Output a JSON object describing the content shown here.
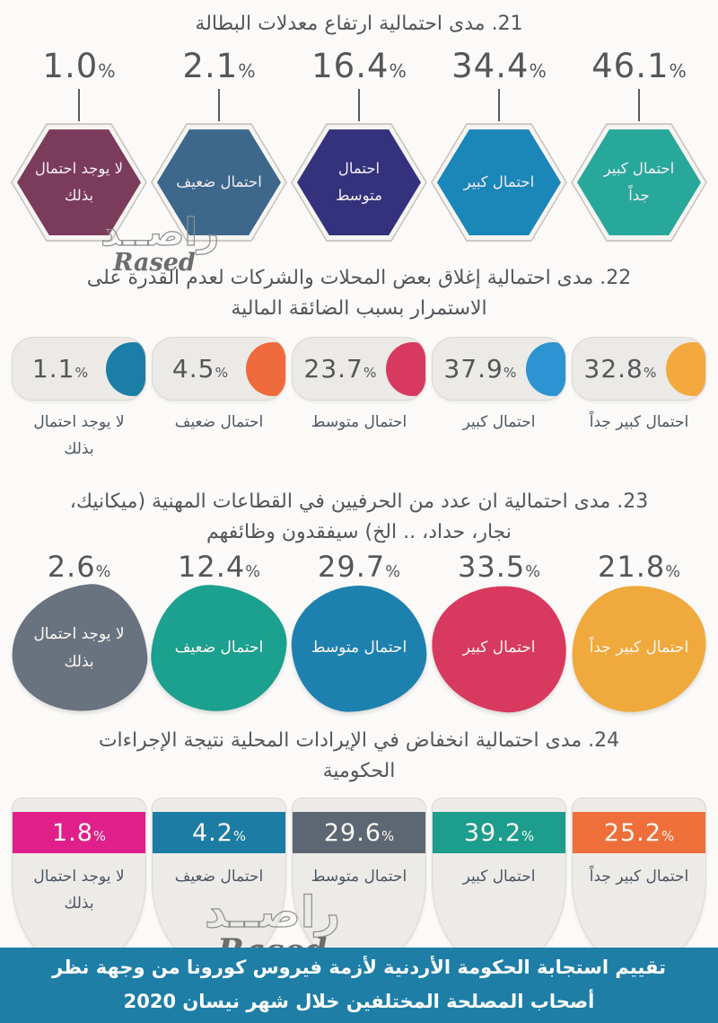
{
  "percent_sign": "%",
  "watermark": {
    "arabic": "راصــد",
    "latin": "Rased"
  },
  "footer": {
    "text": "تقييم استجابة الحكومة الأردنية لأزمة فيروس كورونا من وجهة نظر أصحاب المصلحة المختلفين خلال شهر نيسان 2020",
    "bg": "#1e7ea6"
  },
  "sections": [
    {
      "number": "21",
      "title": "21. مدى احتمالية ارتفاع معدلات البطالة",
      "shape": "hexagon",
      "items": [
        {
          "value": "1.0",
          "label": "لا يوجد احتمال بذلك",
          "color": "#7b3c5c"
        },
        {
          "value": "2.1",
          "label": "احتمال ضعيف",
          "color": "#3d688b"
        },
        {
          "value": "16.4",
          "label": "احتمال متوسط",
          "color": "#34327c"
        },
        {
          "value": "34.4",
          "label": "احتمال كبير",
          "color": "#1b86b8"
        },
        {
          "value": "46.1",
          "label": "احتمال كبير جداً",
          "color": "#28a89a"
        }
      ]
    },
    {
      "number": "22",
      "title": "22. مدى احتمالية إغلاق بعض المحلات والشركات لعدم القدرة على الاستمرار بسبب الضائقة المالية",
      "shape": "pill-circle",
      "items": [
        {
          "value": "1.1",
          "label": "لا يوجد احتمال بذلك",
          "color": "#1b7ea6"
        },
        {
          "value": "4.5",
          "label": "احتمال ضعيف",
          "color": "#ef6a3c"
        },
        {
          "value": "23.7",
          "label": "احتمال متوسط",
          "color": "#d8395e"
        },
        {
          "value": "37.9",
          "label": "احتمال كبير",
          "color": "#2b94d1"
        },
        {
          "value": "32.8",
          "label": "احتمال كبير جداً",
          "color": "#f4a93e"
        }
      ]
    },
    {
      "number": "23",
      "title": "23. مدى احتمالية ان عدد من الحرفيين في القطاعات المهنية (ميكانيك، نجار، حداد، .. الخ) سيفقدون وظائفهم",
      "shape": "blob",
      "items": [
        {
          "value": "2.6",
          "label": "لا يوجد احتمال بذلك",
          "color": "#69727f"
        },
        {
          "value": "12.4",
          "label": "احتمال ضعيف",
          "color": "#1ca08f"
        },
        {
          "value": "29.7",
          "label": "احتمال متوسط",
          "color": "#1d81b0"
        },
        {
          "value": "33.5",
          "label": "احتمال كبير",
          "color": "#d8395e"
        },
        {
          "value": "21.8",
          "label": "احتمال كبير جداً",
          "color": "#f0a93c"
        }
      ]
    },
    {
      "number": "24",
      "title": "24. مدى احتمالية انخفاض في الإيرادات المحلية نتيجة الإجراءات الحكومية",
      "shape": "shield-card",
      "items": [
        {
          "value": "1.8",
          "label": "لا يوجد احتمال بذلك",
          "color": "#e01f8a"
        },
        {
          "value": "4.2",
          "label": "احتمال ضعيف",
          "color": "#1c7ca4"
        },
        {
          "value": "29.6",
          "label": "احتمال متوسط",
          "color": "#5d6773"
        },
        {
          "value": "39.2",
          "label": "احتمال كبير",
          "color": "#1d9d8d"
        },
        {
          "value": "25.2",
          "label": "احتمال كبير جداً",
          "color": "#ef6f3a"
        }
      ]
    }
  ],
  "chart_data": [
    {
      "type": "bar",
      "title": "21. مدى احتمالية ارتفاع معدلات البطالة",
      "categories": [
        "لا يوجد احتمال بذلك",
        "احتمال ضعيف",
        "احتمال متوسط",
        "احتمال كبير",
        "احتمال كبير جداً"
      ],
      "values": [
        1.0,
        2.1,
        16.4,
        34.4,
        46.1
      ],
      "unit": "%",
      "xlabel": "",
      "ylabel": "",
      "ylim": [
        0,
        100
      ]
    },
    {
      "type": "bar",
      "title": "22. مدى احتمالية إغلاق بعض المحلات والشركات لعدم القدرة على الاستمرار بسبب الضائقة المالية",
      "categories": [
        "لا يوجد احتمال بذلك",
        "احتمال ضعيف",
        "احتمال متوسط",
        "احتمال كبير",
        "احتمال كبير جداً"
      ],
      "values": [
        1.1,
        4.5,
        23.7,
        37.9,
        32.8
      ],
      "unit": "%",
      "xlabel": "",
      "ylabel": "",
      "ylim": [
        0,
        100
      ]
    },
    {
      "type": "bar",
      "title": "23. مدى احتمالية ان عدد من الحرفيين في القطاعات المهنية (ميكانيك، نجار، حداد، .. الخ) سيفقدون وظائفهم",
      "categories": [
        "لا يوجد احتمال بذلك",
        "احتمال ضعيف",
        "احتمال متوسط",
        "احتمال كبير",
        "احتمال كبير جداً"
      ],
      "values": [
        2.6,
        12.4,
        29.7,
        33.5,
        21.8
      ],
      "unit": "%",
      "xlabel": "",
      "ylabel": "",
      "ylim": [
        0,
        100
      ]
    },
    {
      "type": "bar",
      "title": "24. مدى احتمالية انخفاض في الإيرادات المحلية نتيجة الإجراءات الحكومية",
      "categories": [
        "لا يوجد احتمال بذلك",
        "احتمال ضعيف",
        "احتمال متوسط",
        "احتمال كبير",
        "احتمال كبير جداً"
      ],
      "values": [
        1.8,
        4.2,
        29.6,
        39.2,
        25.2
      ],
      "unit": "%",
      "xlabel": "",
      "ylabel": "",
      "ylim": [
        0,
        100
      ]
    }
  ]
}
